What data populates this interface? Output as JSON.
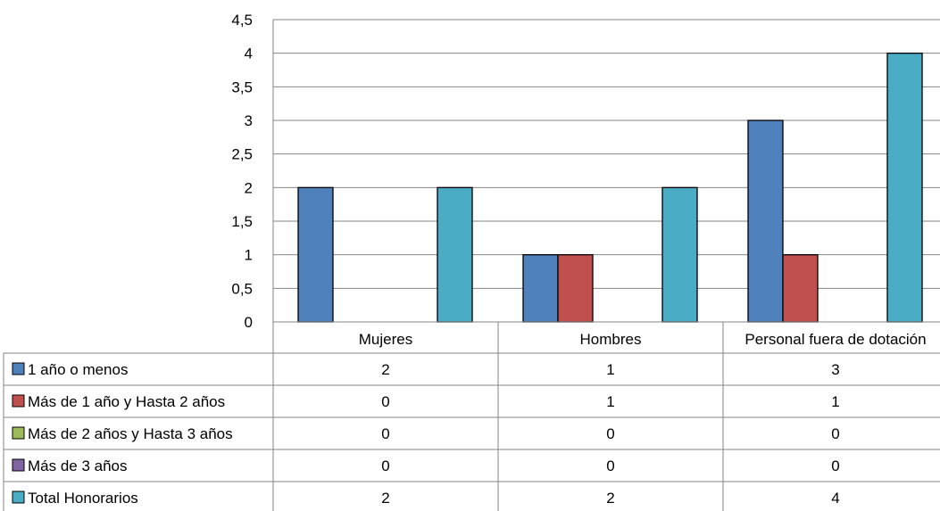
{
  "chart_data": {
    "type": "bar",
    "categories": [
      "Mujeres",
      "Hombres",
      "Personal fuera de dotación"
    ],
    "series": [
      {
        "name": "1 año o menos",
        "values": [
          2,
          1,
          3
        ],
        "color": "#4F81BD"
      },
      {
        "name": "Más de 1 año y Hasta 2 años",
        "values": [
          0,
          1,
          1
        ],
        "color": "#C0504D"
      },
      {
        "name": "Más de 2 años y Hasta 3 años",
        "values": [
          0,
          0,
          0
        ],
        "color": "#9BBB59"
      },
      {
        "name": "Más de 3 años",
        "values": [
          0,
          0,
          0
        ],
        "color": "#8064A2"
      },
      {
        "name": "Total Honorarios",
        "values": [
          2,
          2,
          4
        ],
        "color": "#4BACC6"
      }
    ],
    "ylim": [
      0,
      4.5
    ],
    "yticks": [
      "0",
      "0,5",
      "1",
      "1,5",
      "2",
      "2,5",
      "3",
      "3,5",
      "4",
      "4,5"
    ],
    "grid": true,
    "data_table": true
  }
}
